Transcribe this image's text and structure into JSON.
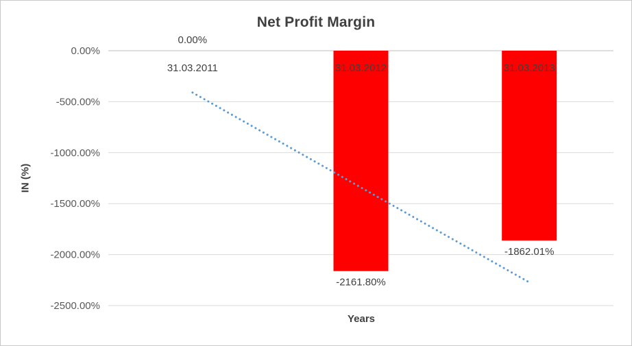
{
  "chart_data": {
    "type": "bar",
    "title": "Net Profit Margin",
    "xlabel": "Years",
    "ylabel": "IN (%)",
    "categories": [
      "31.03.2011",
      "31.03.2012",
      "31.03.2013"
    ],
    "values": [
      0,
      -2161.8,
      -1862.01
    ],
    "data_labels": [
      "0.00%",
      "-2161.80%",
      "-1862.01%"
    ],
    "ylim": [
      -2500,
      0
    ],
    "yticks": [
      {
        "value": 0,
        "label": "0.00%"
      },
      {
        "value": -500,
        "label": "-500.00%"
      },
      {
        "value": -1000,
        "label": "-1000.00%"
      },
      {
        "value": -1500,
        "label": "-1500.00%"
      },
      {
        "value": -2000,
        "label": "-2000.00%"
      },
      {
        "value": -2500,
        "label": "-2500.00%"
      }
    ],
    "bar_color": "#FF0000",
    "gridline_color": "#D9D9D9",
    "zero_line_color": "#BFBFBF",
    "tick_label_color": "#595959",
    "label_color": "#404040",
    "trendline": {
      "style": "dotted",
      "color": "#5B9BD5",
      "start_value": -410.3,
      "end_value": -2272.3
    },
    "grid": true,
    "legend": "none"
  }
}
